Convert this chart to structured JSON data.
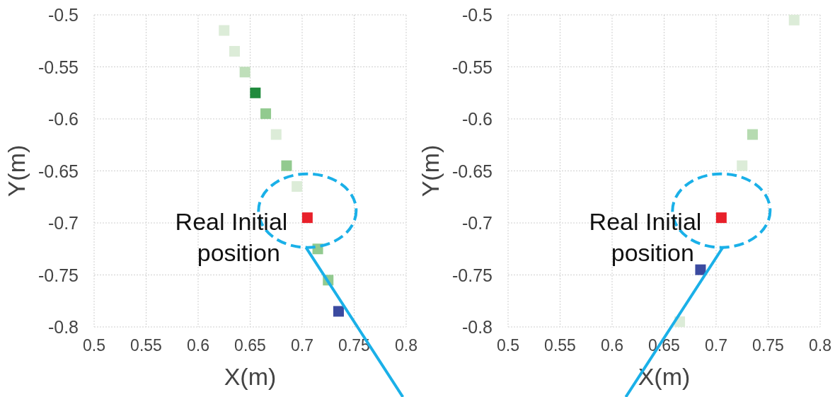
{
  "chart_data": [
    {
      "type": "scatter",
      "xlabel": "X(m)",
      "ylabel": "Y(m)",
      "xlim": [
        0.5,
        0.8
      ],
      "ylim": [
        -0.8,
        -0.5
      ],
      "xticks": [
        0.5,
        0.55,
        0.6,
        0.65,
        0.7,
        0.75,
        0.8
      ],
      "yticks": [
        -0.8,
        -0.75,
        -0.7,
        -0.65,
        -0.6,
        -0.55,
        -0.5
      ],
      "grid": true,
      "marker": "square",
      "series": [
        {
          "x": [
            0.625,
            0.635,
            0.645,
            0.655,
            0.665,
            0.675,
            0.685,
            0.695,
            0.715,
            0.725
          ],
          "values": [
            -0.515,
            -0.535,
            -0.555,
            -0.575,
            -0.595,
            -0.615,
            -0.645,
            -0.665,
            -0.725,
            -0.755
          ],
          "colors": [
            "#dcecd8",
            "#dcecd8",
            "#bfdfba",
            "#1f8a3c",
            "#92ca8f",
            "#dcecd8",
            "#92ca8f",
            "#dcecd8",
            "#92ca8f",
            "#92ca8f"
          ]
        },
        {
          "x": [
            0.735
          ],
          "values": [
            -0.785
          ],
          "color": "#3b4aa0"
        },
        {
          "x": [
            0.705
          ],
          "values": [
            -0.695
          ],
          "color": "#e8202a"
        }
      ],
      "annotations": [
        {
          "text": "Real Initial position",
          "x": 0.705,
          "y": -0.695
        }
      ]
    },
    {
      "type": "scatter",
      "xlabel": "X(m)",
      "ylabel": "Y(m)",
      "xlim": [
        0.5,
        0.8
      ],
      "ylim": [
        -0.8,
        -0.5
      ],
      "xticks": [
        0.5,
        0.55,
        0.6,
        0.65,
        0.7,
        0.75,
        0.8
      ],
      "yticks": [
        -0.8,
        -0.75,
        -0.7,
        -0.65,
        -0.6,
        -0.55,
        -0.5
      ],
      "grid": true,
      "marker": "square",
      "series": [
        {
          "x": [
            0.775,
            0.735,
            0.725,
            0.665
          ],
          "values": [
            -0.505,
            -0.615,
            -0.645,
            -0.795
          ],
          "colors": [
            "#dcecd8",
            "#b6dbb1",
            "#dcecd8",
            "#dcecd8"
          ]
        },
        {
          "x": [
            0.685
          ],
          "values": [
            -0.745
          ],
          "color": "#3b4aa0"
        },
        {
          "x": [
            0.705
          ],
          "values": [
            -0.695
          ],
          "color": "#e8202a"
        }
      ],
      "annotations": [
        {
          "text": "Real Initial position",
          "x": 0.705,
          "y": -0.695
        }
      ]
    }
  ]
}
